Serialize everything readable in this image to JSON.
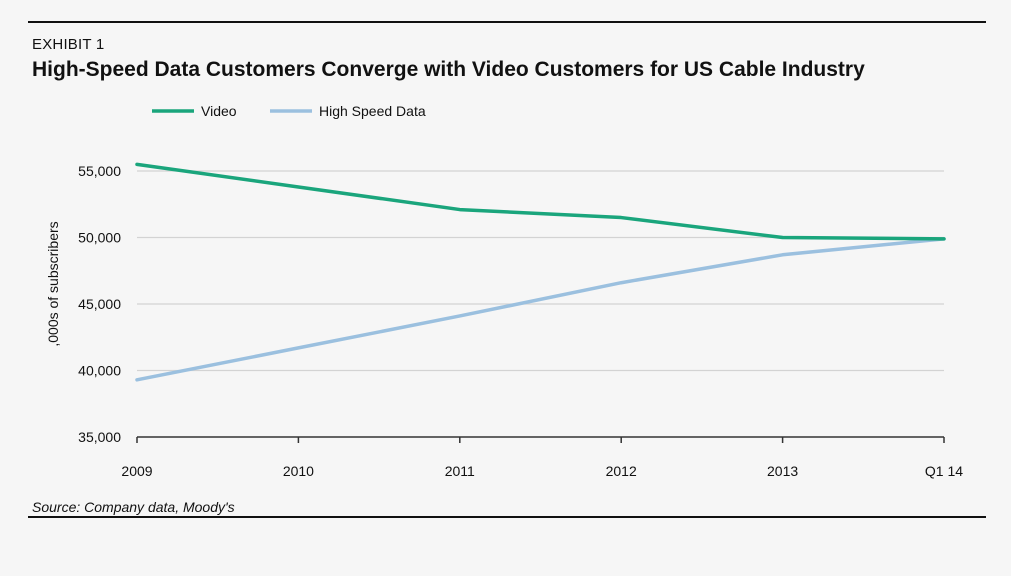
{
  "exhibit": "EXHIBIT 1",
  "colors": {
    "video": "#1aa57c",
    "hsd": "#9bc0df",
    "grid": "#d3d3d3",
    "axis": "#333333"
  },
  "chart_data": {
    "type": "line",
    "title": "High-Speed Data Customers Converge with Video Customers for US Cable Industry",
    "ylabel": ",000s of subscribers",
    "xlabel": "",
    "categories": [
      "2009",
      "2010",
      "2011",
      "2012",
      "2013",
      "Q1 14"
    ],
    "series": [
      {
        "name": "Video",
        "values": [
          55500,
          53800,
          52100,
          51500,
          50000,
          49900
        ]
      },
      {
        "name": "High Speed Data",
        "values": [
          39300,
          41700,
          44100,
          46600,
          48700,
          49900
        ]
      }
    ],
    "ylim": [
      35000,
      55000
    ],
    "yticks": [
      35000,
      40000,
      45000,
      50000,
      55000
    ],
    "ytick_labels": [
      "35,000",
      "40,000",
      "45,000",
      "50,000",
      "55,000"
    ],
    "grid": true,
    "legend_position": "top-left"
  },
  "source": "Source: Company data, Moody's"
}
